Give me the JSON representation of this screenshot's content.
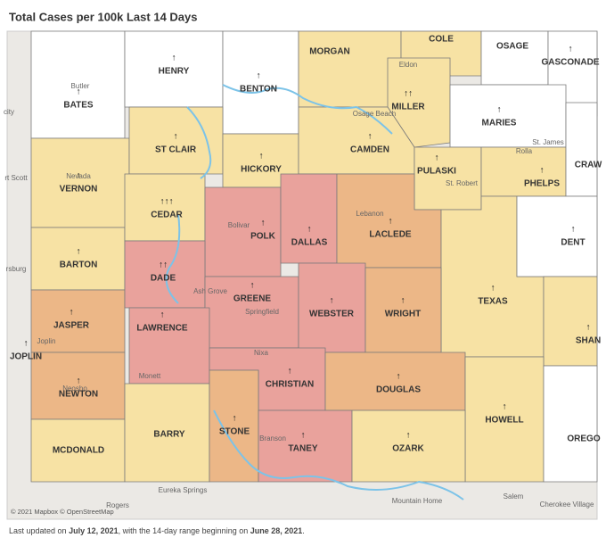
{
  "title": "Total Cases per 100k Last 14 Days",
  "regions": [
    {
      "name": "BATES",
      "trend": "↑"
    },
    {
      "name": "HENRY",
      "trend": "↑"
    },
    {
      "name": "BENTON",
      "trend": "↑"
    },
    {
      "name": "MORGAN"
    },
    {
      "name": "COLE"
    },
    {
      "name": "OSAGE"
    },
    {
      "name": "GASCONADE",
      "trend": "↑"
    },
    {
      "name": "MILLER",
      "trend": "↑↑"
    },
    {
      "name": "MARIES",
      "trend": "↑"
    },
    {
      "name": "VERNON",
      "trend": "↑"
    },
    {
      "name": "ST CLAIR",
      "trend": "↑"
    },
    {
      "name": "HICKORY",
      "trend": "↑"
    },
    {
      "name": "CAMDEN",
      "trend": "↑"
    },
    {
      "name": "PULASKI",
      "trend": "↑"
    },
    {
      "name": "PHELPS",
      "trend": "↑"
    },
    {
      "name": "CRAW"
    },
    {
      "name": "BARTON",
      "trend": "↑"
    },
    {
      "name": "CEDAR",
      "trend": "↑↑↑"
    },
    {
      "name": "POLK",
      "trend": "↑"
    },
    {
      "name": "DALLAS",
      "trend": "↑"
    },
    {
      "name": "LACLEDE",
      "trend": "↑"
    },
    {
      "name": "TEXAS",
      "trend": "↑"
    },
    {
      "name": "DENT",
      "trend": "↑"
    },
    {
      "name": "JASPER",
      "trend": "↑"
    },
    {
      "name": "DADE",
      "trend": "↑↑"
    },
    {
      "name": "GREENE",
      "trend": "↑"
    },
    {
      "name": "WEBSTER",
      "trend": "↑"
    },
    {
      "name": "WRIGHT",
      "trend": "↑"
    },
    {
      "name": "SHAN",
      "trend": "↑"
    },
    {
      "name": "NEWTON",
      "trend": "↑"
    },
    {
      "name": "LAWRENCE",
      "trend": "↑"
    },
    {
      "name": "CHRISTIAN",
      "trend": "↑"
    },
    {
      "name": "DOUGLAS",
      "trend": "↑"
    },
    {
      "name": "HOWELL",
      "trend": "↑"
    },
    {
      "name": "OREGO"
    },
    {
      "name": "MCDONALD"
    },
    {
      "name": "BARRY"
    },
    {
      "name": "STONE",
      "trend": "↑"
    },
    {
      "name": "TANEY",
      "trend": "↑"
    },
    {
      "name": "OZARK",
      "trend": "↑"
    },
    {
      "name": "JOPLIN",
      "trend": "↑"
    }
  ],
  "places": [
    "Butler",
    "Eldon",
    "Osage Beach",
    "Nevada",
    "Lebanon",
    "St. Robert",
    "Rolla",
    "St. James",
    "Bolivar",
    "Ash Grove",
    "Springfield",
    "Nixa",
    "Monett",
    "Joplin",
    "Neosho",
    "Branson",
    "Eureka Springs",
    "Rogers",
    "Mountain Home",
    "Salem",
    "Cherokee Village",
    "city",
    "rt Scott",
    "rsburg"
  ],
  "attribution": "© 2021 Mapbox © OpenStreetMap",
  "footer": [
    "Last updated on ",
    "July 12, 2021",
    ", with the 14-day range beginning on ",
    "June 28, 2021",
    "."
  ]
}
